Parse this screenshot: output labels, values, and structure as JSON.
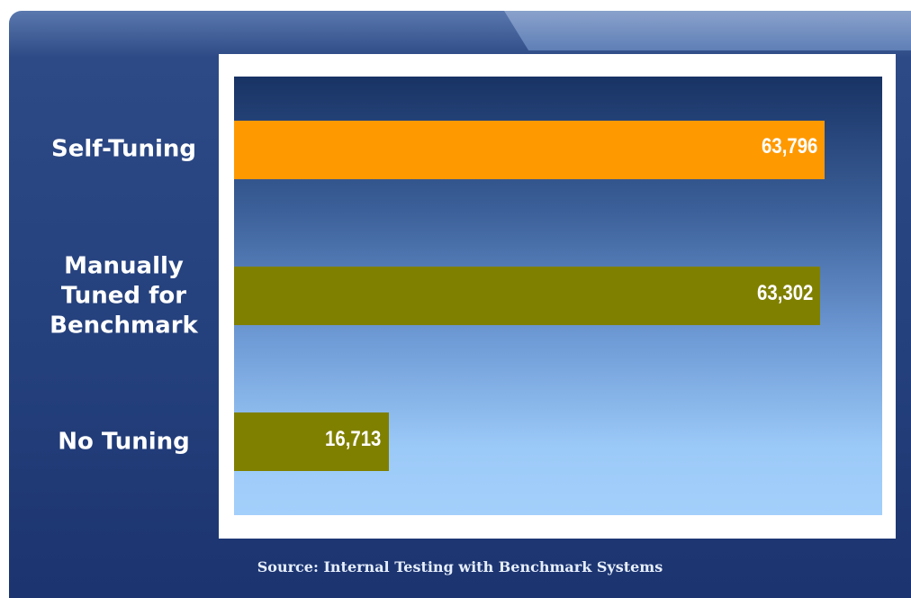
{
  "chart_data": {
    "type": "hbar",
    "categories": [
      "Self-Tuning",
      "Manually Tuned for Benchmark",
      "No Tuning"
    ],
    "values": [
      63796,
      63302,
      16713
    ],
    "value_labels": [
      "63,796",
      "63,302",
      "16,713"
    ],
    "colors": [
      "#ff9900",
      "#808000",
      "#808000"
    ],
    "xlim": [
      0,
      70000
    ],
    "source": "Source: Internal Testing with Benchmark Systems"
  }
}
